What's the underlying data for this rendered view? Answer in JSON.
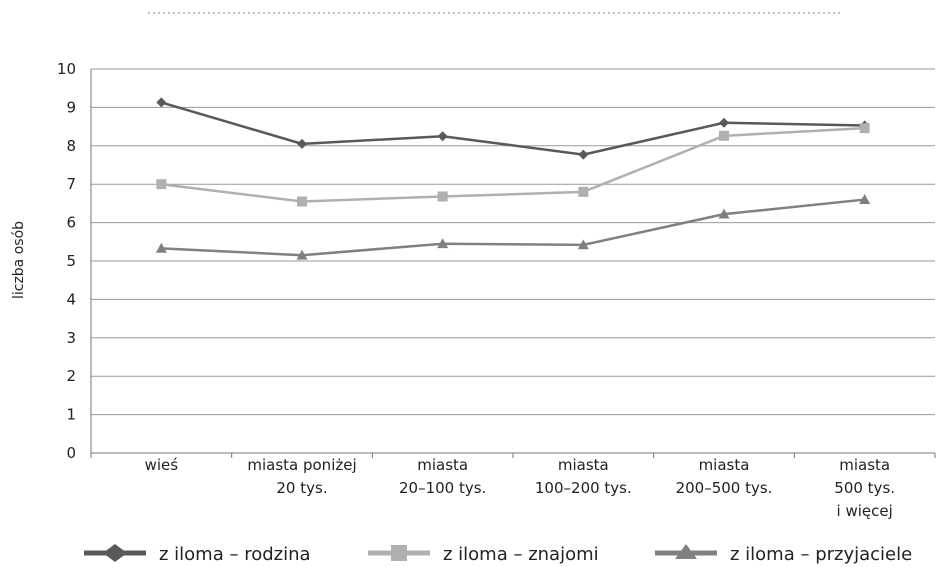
{
  "chart_data": {
    "type": "line",
    "title": "",
    "xlabel": "",
    "ylabel": "liczba osób",
    "ylim": [
      0,
      10
    ],
    "yticks": [
      0,
      1,
      2,
      3,
      4,
      5,
      6,
      7,
      8,
      9,
      10
    ],
    "grid": true,
    "legend_position": "bottom",
    "categories": [
      [
        "wieś"
      ],
      [
        "miasta poniżej",
        "20 tys."
      ],
      [
        "miasta",
        "20–100 tys."
      ],
      [
        "miasta",
        "100–200 tys."
      ],
      [
        "miasta",
        "200–500 tys."
      ],
      [
        "miasta",
        "500 tys.",
        "i więcej"
      ]
    ],
    "series": [
      {
        "name": "z iloma – rodzina",
        "marker": "diamond",
        "color": "#595959",
        "values": [
          9.13,
          8.05,
          8.25,
          7.77,
          8.6,
          8.53
        ]
      },
      {
        "name": "z iloma – znajomi",
        "marker": "square",
        "color": "#b0b0b0",
        "values": [
          7.0,
          6.55,
          6.68,
          6.8,
          8.26,
          8.46
        ]
      },
      {
        "name": "z iloma – przyjaciele",
        "marker": "triangle",
        "color": "#808080",
        "values": [
          5.33,
          5.15,
          5.45,
          5.42,
          6.22,
          6.6
        ]
      }
    ]
  }
}
